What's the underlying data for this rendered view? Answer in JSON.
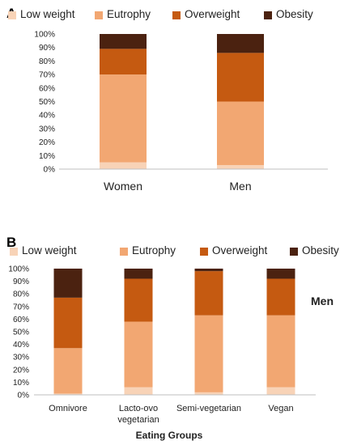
{
  "series_colors": [
    "#f8d3b7",
    "#f2a772",
    "#c55a11",
    "#4b2210"
  ],
  "legend": [
    "Low weight",
    "Eutrophy",
    "Overweight",
    "Obesity"
  ],
  "yticks": [
    "0%",
    "10%",
    "20%",
    "30%",
    "40%",
    "50%",
    "60%",
    "70%",
    "80%",
    "90%",
    "100%"
  ],
  "chart_data": [
    {
      "type": "bar",
      "stacked": true,
      "panel_label": "A",
      "categories": [
        "Women",
        "Men"
      ],
      "series": [
        {
          "name": "Low weight",
          "values": [
            5,
            3
          ]
        },
        {
          "name": "Eutrophy",
          "values": [
            65,
            47
          ]
        },
        {
          "name": "Overweight",
          "values": [
            19,
            36
          ]
        },
        {
          "name": "Obesity",
          "values": [
            11,
            14
          ]
        }
      ],
      "ylim": [
        0,
        100
      ],
      "xlabel": "",
      "ylabel": "",
      "legend_position": "top",
      "grid": false
    },
    {
      "type": "bar",
      "stacked": true,
      "panel_label": "B",
      "categories": [
        "Omnivore",
        "Lacto-ovo vegetarian",
        "Semi-vegetarian",
        "Vegan"
      ],
      "category_lines": [
        [
          "Omnivore"
        ],
        [
          "Lacto-ovo",
          "vegetarian"
        ],
        [
          "Semi-vegetarian"
        ],
        [
          "Vegan"
        ]
      ],
      "series": [
        {
          "name": "Low weight",
          "values": [
            1,
            6,
            2,
            6
          ]
        },
        {
          "name": "Eutrophy",
          "values": [
            36,
            52,
            61,
            57
          ]
        },
        {
          "name": "Overweight",
          "values": [
            40,
            34,
            35,
            29
          ]
        },
        {
          "name": "Obesity",
          "values": [
            23,
            8,
            2,
            8
          ]
        }
      ],
      "ylim": [
        0,
        100
      ],
      "xlabel": "Eating Groups",
      "ylabel": "",
      "side_label": "Men",
      "legend_position": "top",
      "grid": false
    }
  ]
}
